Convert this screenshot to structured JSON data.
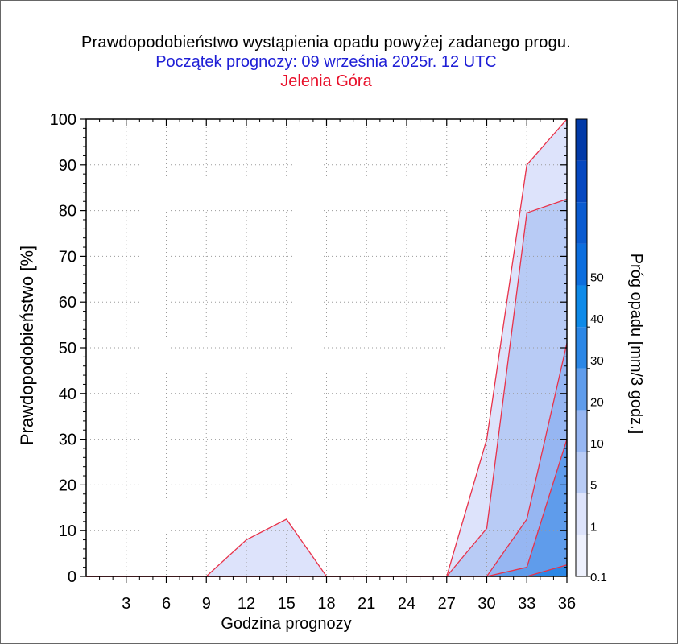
{
  "title": {
    "line1": "Prawdopodobieństwo wystąpienia opadu powyżej zadanego progu.",
    "line2": "Początek prognozy: 09 września 2025r. 12 UTC",
    "line3": "Jelenia Góra"
  },
  "chart_data": {
    "type": "area",
    "xlabel": "Godzina prognozy",
    "ylabel": "Prawdopodobieństwo [%]",
    "colorbar_label": "Próg opadu [mm/3 godz.]",
    "x": [
      0,
      3,
      6,
      9,
      12,
      15,
      18,
      21,
      24,
      27,
      30,
      33,
      36
    ],
    "x_ticks": [
      "3",
      "6",
      "9",
      "12",
      "15",
      "18",
      "21",
      "24",
      "27",
      "30",
      "33",
      "36"
    ],
    "y_ticks": [
      "0",
      "10",
      "20",
      "30",
      "40",
      "50",
      "60",
      "70",
      "80",
      "90",
      "100"
    ],
    "xlim": [
      0,
      36
    ],
    "ylim": [
      0,
      100
    ],
    "grid": true,
    "series": [
      {
        "name": "0.1",
        "color": "#dde3fb",
        "values": [
          0,
          0,
          0,
          0,
          8,
          12.5,
          0,
          0,
          0,
          0,
          30,
          90,
          100
        ]
      },
      {
        "name": "1",
        "color": "#b8cbf5",
        "values": [
          0,
          0,
          0,
          0,
          0,
          0,
          0,
          0,
          0,
          0,
          10.5,
          79.5,
          82.5
        ]
      },
      {
        "name": "5",
        "color": "#96b6f2",
        "values": [
          0,
          0,
          0,
          0,
          0,
          0,
          0,
          0,
          0,
          0,
          0,
          12.5,
          51
        ]
      },
      {
        "name": "10",
        "color": "#5f9ceb",
        "values": [
          0,
          0,
          0,
          0,
          0,
          0,
          0,
          0,
          0,
          0,
          0,
          2,
          30
        ]
      },
      {
        "name": "20",
        "color": "#2b87e6",
        "values": [
          0,
          0,
          0,
          0,
          0,
          0,
          0,
          0,
          0,
          0,
          0,
          0,
          2.5
        ]
      }
    ],
    "colorbar": {
      "labels": [
        "0.1",
        "1",
        "5",
        "10",
        "20",
        "30",
        "40",
        "50"
      ],
      "colors": [
        "#eef1fd",
        "#dde3fb",
        "#b8cbf5",
        "#96b6f2",
        "#5f9ceb",
        "#2b87e6",
        "#0e8ae8",
        "#0c6ede",
        "#0a5bd0",
        "#0648c0",
        "#023aa8"
      ]
    },
    "line_color": "#e8324a"
  }
}
